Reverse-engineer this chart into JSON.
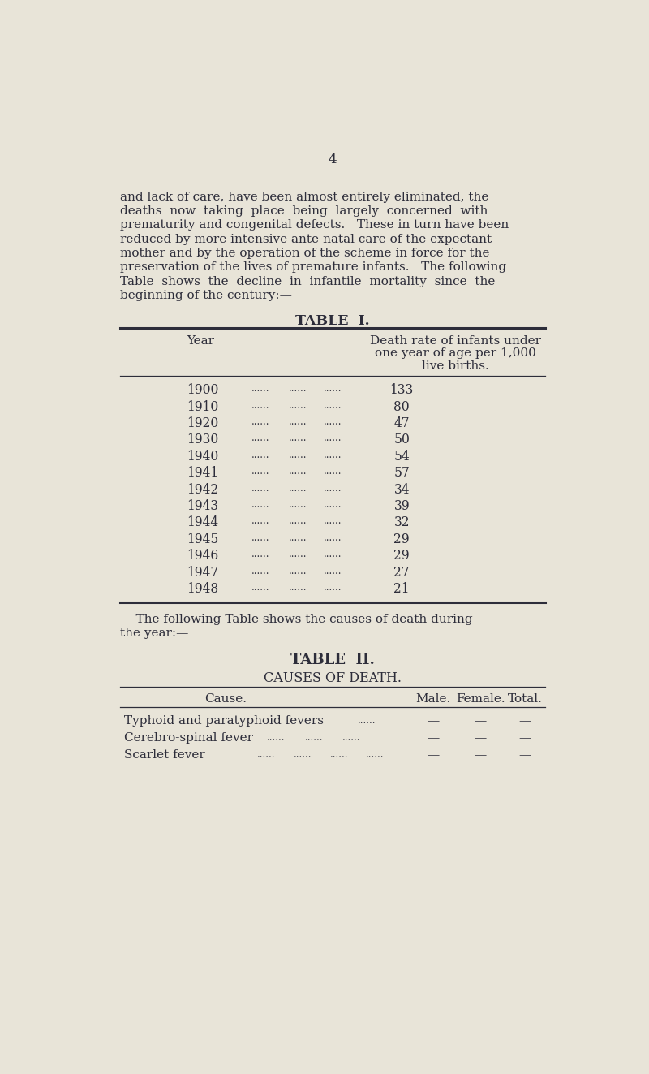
{
  "bg_color": "#e8e4d8",
  "text_color": "#2d2d3a",
  "page_number": "4",
  "para_lines": [
    "and lack of care, have been almost entirely eliminated, the",
    "deaths  now  taking  place  being  largely  concerned  with",
    "prematurity and congenital defects.   These in turn have been",
    "reduced by more intensive ante-natal care of the expectant",
    "mother and by the operation of the scheme in force for the",
    "preservation of the lives of premature infants.   The following",
    "Table  shows  the  decline  in  infantile  mortality  since  the",
    "beginning of the century:—"
  ],
  "table1_title": "TABLE  I.",
  "table1_col1_header": "Year",
  "table1_col2_header_lines": [
    "Death rate of infants under",
    "one year of age per 1,000",
    "live births."
  ],
  "table1_data": [
    [
      "1900",
      "133"
    ],
    [
      "1910",
      "80"
    ],
    [
      "1920",
      "47"
    ],
    [
      "1930",
      "50"
    ],
    [
      "1940",
      "54"
    ],
    [
      "1941",
      "57"
    ],
    [
      "1942",
      "34"
    ],
    [
      "1943",
      "39"
    ],
    [
      "1944",
      "32"
    ],
    [
      "1945",
      "29"
    ],
    [
      "1946",
      "29"
    ],
    [
      "1947",
      "27"
    ],
    [
      "1948",
      "21"
    ]
  ],
  "between_lines": [
    "    The following Table shows the causes of death during",
    "the year:—"
  ],
  "table2_title": "TABLE  II.",
  "table2_subtitle": "CAUSES OF DEATH.",
  "table2_col_headers": [
    "Cause.",
    "Male.",
    "Female.",
    "Total."
  ],
  "table2_data": [
    [
      "Typhoid and paratyphoid fevers",
      "......",
      "—",
      "—",
      "—"
    ],
    [
      "Cerebro-spinal fever",
      "...... ...... ......",
      "—",
      "—",
      "—"
    ],
    [
      "Scarlet fever",
      "...... ...... ...... ......",
      "—",
      "—",
      "—"
    ]
  ],
  "t2_dots_x": [
    [
      455
    ],
    [
      310,
      370,
      430
    ],
    [
      295,
      352,
      410,
      467
    ]
  ]
}
